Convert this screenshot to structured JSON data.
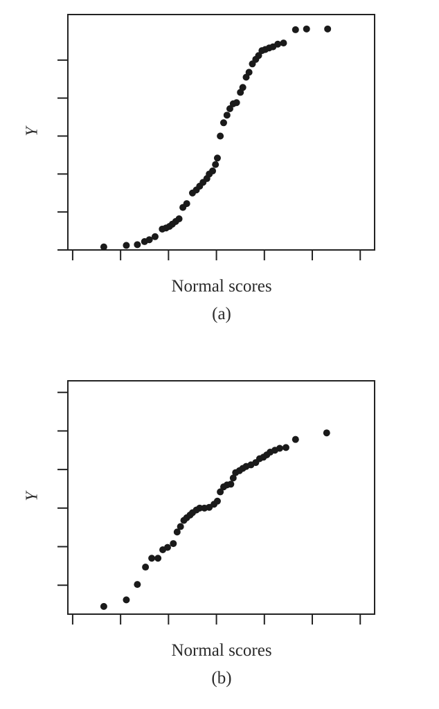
{
  "chart_data": [
    {
      "type": "scatter",
      "panel_label": "(a)",
      "xlabel": "Normal scores",
      "ylabel": "Y",
      "xlim": [
        -3.1,
        3.3
      ],
      "ylim": [
        0.0,
        6.2
      ],
      "xticks": [
        -3,
        -2,
        -1,
        0,
        1,
        2,
        3
      ],
      "yticks": [
        0,
        1,
        2,
        3,
        4,
        5
      ],
      "tick_labels_shown": false,
      "grid": false,
      "legend": "none",
      "points": [
        [
          -2.35,
          0.08
        ],
        [
          -1.88,
          0.12
        ],
        [
          -1.65,
          0.14
        ],
        [
          -1.5,
          0.22
        ],
        [
          -1.4,
          0.27
        ],
        [
          -1.28,
          0.35
        ],
        [
          -1.13,
          0.55
        ],
        [
          -1.05,
          0.58
        ],
        [
          -0.98,
          0.62
        ],
        [
          -0.92,
          0.68
        ],
        [
          -0.85,
          0.75
        ],
        [
          -0.78,
          0.82
        ],
        [
          -0.7,
          1.12
        ],
        [
          -0.62,
          1.22
        ],
        [
          -0.5,
          1.5
        ],
        [
          -0.42,
          1.58
        ],
        [
          -0.35,
          1.68
        ],
        [
          -0.28,
          1.78
        ],
        [
          -0.2,
          1.88
        ],
        [
          -0.15,
          2.0
        ],
        [
          -0.08,
          2.08
        ],
        [
          -0.02,
          2.25
        ],
        [
          0.02,
          2.42
        ],
        [
          0.08,
          3.0
        ],
        [
          0.15,
          3.35
        ],
        [
          0.22,
          3.55
        ],
        [
          0.28,
          3.72
        ],
        [
          0.35,
          3.85
        ],
        [
          0.42,
          3.88
        ],
        [
          0.5,
          4.15
        ],
        [
          0.55,
          4.28
        ],
        [
          0.62,
          4.55
        ],
        [
          0.68,
          4.68
        ],
        [
          0.75,
          4.9
        ],
        [
          0.82,
          5.02
        ],
        [
          0.88,
          5.12
        ],
        [
          0.95,
          5.25
        ],
        [
          1.02,
          5.28
        ],
        [
          1.1,
          5.32
        ],
        [
          1.18,
          5.35
        ],
        [
          1.28,
          5.42
        ],
        [
          1.4,
          5.45
        ],
        [
          1.65,
          5.8
        ],
        [
          1.88,
          5.82
        ],
        [
          2.32,
          5.82
        ]
      ]
    },
    {
      "type": "scatter",
      "panel_label": "(b)",
      "xlabel": "Normal scores",
      "ylabel": "Y",
      "xlim": [
        -3.1,
        3.3
      ],
      "ylim": [
        -0.75,
        5.3
      ],
      "xticks": [
        -3,
        -2,
        -1,
        0,
        1,
        2,
        3
      ],
      "yticks": [
        0,
        1,
        2,
        3,
        4,
        5
      ],
      "tick_labels_shown": false,
      "grid": false,
      "legend": "none",
      "points": [
        [
          -2.35,
          -0.55
        ],
        [
          -1.88,
          -0.38
        ],
        [
          -1.65,
          0.02
        ],
        [
          -1.48,
          0.47
        ],
        [
          -1.35,
          0.7
        ],
        [
          -1.22,
          0.7
        ],
        [
          -1.12,
          0.92
        ],
        [
          -1.02,
          0.98
        ],
        [
          -0.9,
          1.08
        ],
        [
          -0.82,
          1.38
        ],
        [
          -0.75,
          1.52
        ],
        [
          -0.68,
          1.68
        ],
        [
          -0.62,
          1.75
        ],
        [
          -0.55,
          1.82
        ],
        [
          -0.5,
          1.88
        ],
        [
          -0.42,
          1.95
        ],
        [
          -0.35,
          2.0
        ],
        [
          -0.25,
          2.0
        ],
        [
          -0.15,
          2.02
        ],
        [
          -0.05,
          2.1
        ],
        [
          0.02,
          2.18
        ],
        [
          0.08,
          2.42
        ],
        [
          0.15,
          2.55
        ],
        [
          0.22,
          2.6
        ],
        [
          0.3,
          2.62
        ],
        [
          0.35,
          2.78
        ],
        [
          0.4,
          2.92
        ],
        [
          0.48,
          2.97
        ],
        [
          0.55,
          3.03
        ],
        [
          0.62,
          3.08
        ],
        [
          0.72,
          3.12
        ],
        [
          0.82,
          3.18
        ],
        [
          0.9,
          3.28
        ],
        [
          0.98,
          3.32
        ],
        [
          1.05,
          3.38
        ],
        [
          1.12,
          3.45
        ],
        [
          1.22,
          3.5
        ],
        [
          1.32,
          3.55
        ],
        [
          1.45,
          3.57
        ],
        [
          1.65,
          3.78
        ],
        [
          2.3,
          3.95
        ]
      ]
    }
  ]
}
